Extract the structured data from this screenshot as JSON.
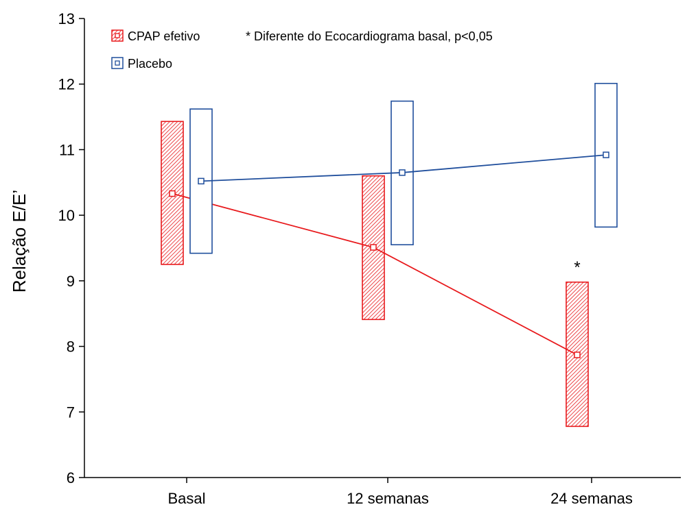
{
  "chart_data": {
    "type": "line",
    "categories": [
      "Basal",
      "12 semanas",
      "24 semanas"
    ],
    "ylabel": "Relação E/E’",
    "xlabel": "",
    "ylim": [
      6,
      13
    ],
    "yticks": [
      "6",
      "7",
      "8",
      "9",
      "10",
      "11",
      "12",
      "13"
    ],
    "grid": false,
    "legend_position": "top-left",
    "annotation": "* Diferente do Ecocardiograma basal, p<0,05",
    "significance_marker": "*",
    "series": [
      {
        "name": "CPAP efetivo",
        "color": "#e8191c",
        "fill": "hatched",
        "values": [
          10.33,
          9.51,
          7.87
        ],
        "ci_low": [
          9.25,
          8.41,
          6.78
        ],
        "ci_high": [
          11.43,
          10.6,
          8.98
        ],
        "significant": [
          false,
          false,
          true
        ]
      },
      {
        "name": "Placebo",
        "color": "#1f4e9c",
        "fill": "none",
        "values": [
          10.52,
          10.65,
          10.92
        ],
        "ci_low": [
          9.42,
          9.55,
          9.82
        ],
        "ci_high": [
          11.62,
          11.74,
          12.01
        ],
        "significant": [
          false,
          false,
          false
        ]
      }
    ]
  }
}
